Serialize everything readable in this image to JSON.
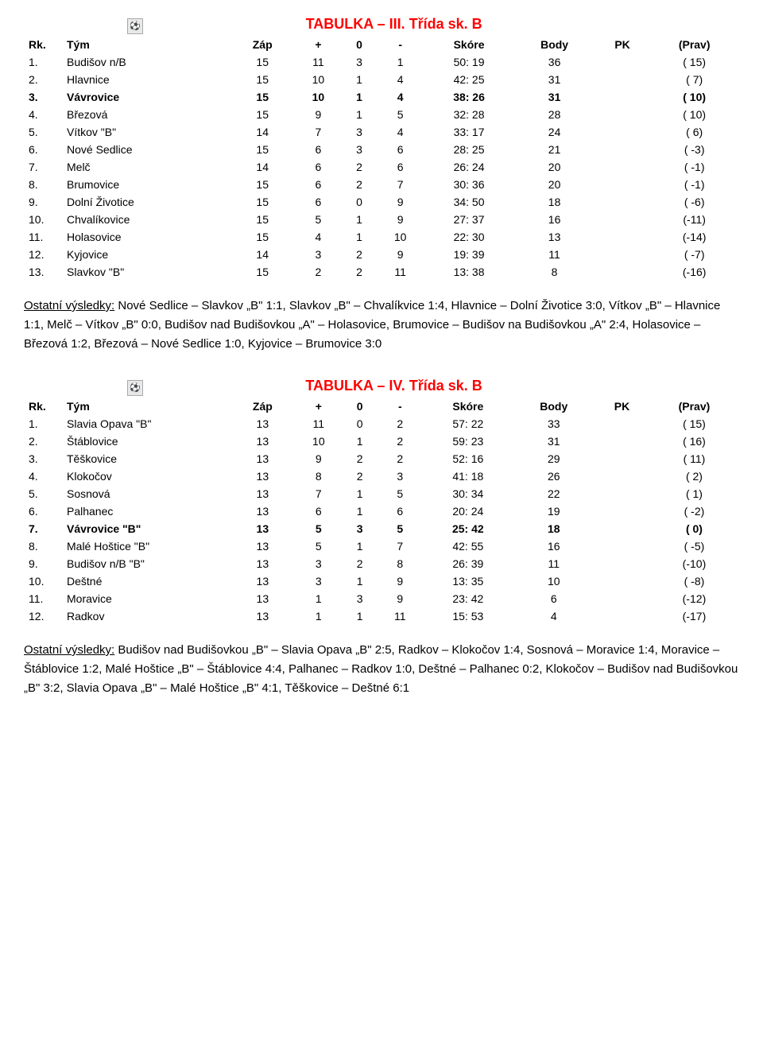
{
  "table1": {
    "title": "TABULKA – III. Třída sk. B",
    "columns": [
      "Rk.",
      "Tým",
      "Záp",
      "+",
      "0",
      "-",
      "Skóre",
      "Body",
      "PK",
      "(Prav)"
    ],
    "rows": [
      {
        "rk": "1.",
        "team": "Budišov n/B",
        "zap": "15",
        "w": "11",
        "d": "3",
        "l": "1",
        "score": "50: 19",
        "body": "36",
        "pk": "",
        "prav": "( 15)",
        "bold": false
      },
      {
        "rk": "2.",
        "team": "Hlavnice",
        "zap": "15",
        "w": "10",
        "d": "1",
        "l": "4",
        "score": "42: 25",
        "body": "31",
        "pk": "",
        "prav": "( 7)",
        "bold": false
      },
      {
        "rk": "3.",
        "team": "Vávrovice",
        "zap": "15",
        "w": "10",
        "d": "1",
        "l": "4",
        "score": "38: 26",
        "body": "31",
        "pk": "",
        "prav": "( 10)",
        "bold": true
      },
      {
        "rk": "4.",
        "team": "Březová",
        "zap": "15",
        "w": "9",
        "d": "1",
        "l": "5",
        "score": "32: 28",
        "body": "28",
        "pk": "",
        "prav": "( 10)",
        "bold": false
      },
      {
        "rk": "5.",
        "team": "Vítkov \"B\"",
        "zap": "14",
        "w": "7",
        "d": "3",
        "l": "4",
        "score": "33: 17",
        "body": "24",
        "pk": "",
        "prav": "( 6)",
        "bold": false
      },
      {
        "rk": "6.",
        "team": "Nové Sedlice",
        "zap": "15",
        "w": "6",
        "d": "3",
        "l": "6",
        "score": "28: 25",
        "body": "21",
        "pk": "",
        "prav": "( -3)",
        "bold": false
      },
      {
        "rk": "7.",
        "team": "Melč",
        "zap": "14",
        "w": "6",
        "d": "2",
        "l": "6",
        "score": "26: 24",
        "body": "20",
        "pk": "",
        "prav": "( -1)",
        "bold": false
      },
      {
        "rk": "8.",
        "team": "Brumovice",
        "zap": "15",
        "w": "6",
        "d": "2",
        "l": "7",
        "score": "30: 36",
        "body": "20",
        "pk": "",
        "prav": "( -1)",
        "bold": false
      },
      {
        "rk": "9.",
        "team": "Dolní Životice",
        "zap": "15",
        "w": "6",
        "d": "0",
        "l": "9",
        "score": "34: 50",
        "body": "18",
        "pk": "",
        "prav": "( -6)",
        "bold": false
      },
      {
        "rk": "10.",
        "team": "Chvalíkovice",
        "zap": "15",
        "w": "5",
        "d": "1",
        "l": "9",
        "score": "27: 37",
        "body": "16",
        "pk": "",
        "prav": "(-11)",
        "bold": false
      },
      {
        "rk": "11.",
        "team": "Holasovice",
        "zap": "15",
        "w": "4",
        "d": "1",
        "l": "10",
        "score": "22: 30",
        "body": "13",
        "pk": "",
        "prav": "(-14)",
        "bold": false
      },
      {
        "rk": "12.",
        "team": "Kyjovice",
        "zap": "14",
        "w": "3",
        "d": "2",
        "l": "9",
        "score": "19: 39",
        "body": "11",
        "pk": "",
        "prav": "( -7)",
        "bold": false
      },
      {
        "rk": "13.",
        "team": "Slavkov \"B\"",
        "zap": "15",
        "w": "2",
        "d": "2",
        "l": "11",
        "score": "13: 38",
        "body": "8",
        "pk": "",
        "prav": "(-16)",
        "bold": false
      }
    ]
  },
  "results1": {
    "label": "Ostatní výsledky:",
    "text": " Nové Sedlice – Slavkov „B\" 1:1, Slavkov „B\" – Chvalíkvice 1:4, Hlavnice – Dolní Životice 3:0, Vítkov „B\" – Hlavnice 1:1, Melč – Vítkov „B\" 0:0, Budišov nad Budišovkou „A\" – Holasovice, Brumovice – Budišov na Budišovkou „A\" 2:4, Holasovice – Březová 1:2, Březová – Nové Sedlice 1:0, Kyjovice – Brumovice 3:0"
  },
  "table2": {
    "title": "TABULKA – IV. Třída sk. B",
    "columns": [
      "Rk.",
      "Tým",
      "Záp",
      "+",
      "0",
      "-",
      "Skóre",
      "Body",
      "PK",
      "(Prav)"
    ],
    "rows": [
      {
        "rk": "1.",
        "team": "Slavia Opava \"B\"",
        "zap": "13",
        "w": "11",
        "d": "0",
        "l": "2",
        "score": "57: 22",
        "body": "33",
        "pk": "",
        "prav": "( 15)",
        "bold": false
      },
      {
        "rk": "2.",
        "team": "Štáblovice",
        "zap": "13",
        "w": "10",
        "d": "1",
        "l": "2",
        "score": "59: 23",
        "body": "31",
        "pk": "",
        "prav": "( 16)",
        "bold": false
      },
      {
        "rk": "3.",
        "team": "Těškovice",
        "zap": "13",
        "w": "9",
        "d": "2",
        "l": "2",
        "score": "52: 16",
        "body": "29",
        "pk": "",
        "prav": "( 11)",
        "bold": false
      },
      {
        "rk": "4.",
        "team": "Klokočov",
        "zap": "13",
        "w": "8",
        "d": "2",
        "l": "3",
        "score": "41: 18",
        "body": "26",
        "pk": "",
        "prav": "( 2)",
        "bold": false
      },
      {
        "rk": "5.",
        "team": "Sosnová",
        "zap": "13",
        "w": "7",
        "d": "1",
        "l": "5",
        "score": "30: 34",
        "body": "22",
        "pk": "",
        "prav": "( 1)",
        "bold": false
      },
      {
        "rk": "6.",
        "team": "Palhanec",
        "zap": "13",
        "w": "6",
        "d": "1",
        "l": "6",
        "score": "20: 24",
        "body": "19",
        "pk": "",
        "prav": "( -2)",
        "bold": false
      },
      {
        "rk": "7.",
        "team": "Vávrovice \"B\"",
        "zap": "13",
        "w": "5",
        "d": "3",
        "l": "5",
        "score": "25: 42",
        "body": "18",
        "pk": "",
        "prav": "( 0)",
        "bold": true
      },
      {
        "rk": "8.",
        "team": "Malé Hoštice \"B\"",
        "zap": "13",
        "w": "5",
        "d": "1",
        "l": "7",
        "score": "42: 55",
        "body": "16",
        "pk": "",
        "prav": "( -5)",
        "bold": false
      },
      {
        "rk": "9.",
        "team": "Budišov n/B \"B\"",
        "zap": "13",
        "w": "3",
        "d": "2",
        "l": "8",
        "score": "26: 39",
        "body": "11",
        "pk": "",
        "prav": "(-10)",
        "bold": false
      },
      {
        "rk": "10.",
        "team": "Deštné",
        "zap": "13",
        "w": "3",
        "d": "1",
        "l": "9",
        "score": "13: 35",
        "body": "10",
        "pk": "",
        "prav": "( -8)",
        "bold": false
      },
      {
        "rk": "11.",
        "team": "Moravice",
        "zap": "13",
        "w": "1",
        "d": "3",
        "l": "9",
        "score": "23: 42",
        "body": "6",
        "pk": "",
        "prav": "(-12)",
        "bold": false
      },
      {
        "rk": "12.",
        "team": "Radkov",
        "zap": "13",
        "w": "1",
        "d": "1",
        "l": "11",
        "score": "15: 53",
        "body": "4",
        "pk": "",
        "prav": "(-17)",
        "bold": false
      }
    ]
  },
  "results2": {
    "label": "Ostatní výsledky:",
    "text": " Budišov nad Budišovkou „B\" – Slavia Opava „B\" 2:5, Radkov – Klokočov 1:4, Sosnová – Moravice 1:4, Moravice – Štáblovice 1:2, Malé Hoštice „B\" – Štáblovice 4:4, Palhanec – Radkov 1:0, Deštné – Palhanec 0:2, Klokočov – Budišov nad Budišovkou „B\" 3:2, Slavia Opava „B\" – Malé Hoštice „B\" 4:1, Těškovice – Deštné 6:1"
  },
  "colors": {
    "title": "#ff0000",
    "text": "#000000",
    "background": "#ffffff"
  }
}
